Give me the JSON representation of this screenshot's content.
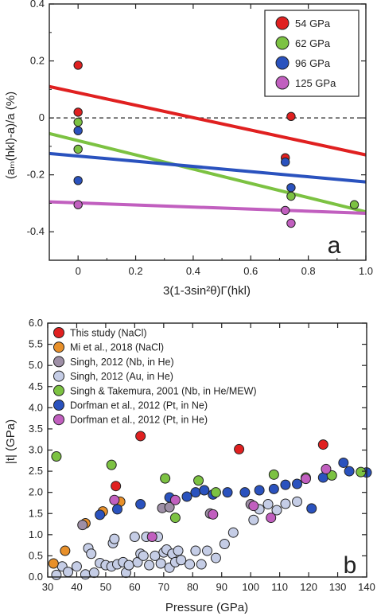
{
  "chart_data": [
    {
      "type": "scatter",
      "panel_label": "a",
      "xlabel": "3(1-3sin²θ)Γ(hkl)",
      "ylabel": "(aₘ(hkl)-a)/a (%)",
      "xlim": [
        -0.1,
        1.0
      ],
      "ylim": [
        -0.5,
        0.4
      ],
      "xticks": [
        "0",
        "0.2",
        "0.4",
        "0.6",
        "0.8",
        "1.0"
      ],
      "yticks": [
        "-0.4",
        "-0.2",
        "0",
        "0.2",
        "0.4"
      ],
      "xtick_values": [
        0,
        0.2,
        0.4,
        0.6,
        0.8,
        1.0
      ],
      "ytick_values": [
        -0.4,
        -0.2,
        0,
        0.2,
        0.4
      ],
      "zero_line": "dashed",
      "legend_position": "top-right",
      "series": [
        {
          "name": "54 GPa",
          "color": "#e02020",
          "points": [
            [
              0,
              0.185
            ],
            [
              0,
              0.02
            ],
            [
              0.74,
              0.005
            ],
            [
              0.72,
              -0.14
            ]
          ],
          "fit": [
            [
              -0.1,
              0.11
            ],
            [
              1.0,
              -0.13
            ]
          ]
        },
        {
          "name": "62 GPa",
          "color": "#7cc242",
          "points": [
            [
              0,
              -0.015
            ],
            [
              0,
              -0.11
            ],
            [
              0.74,
              -0.275
            ],
            [
              0.96,
              -0.305
            ]
          ],
          "fit": [
            [
              -0.1,
              -0.055
            ],
            [
              1.0,
              -0.33
            ]
          ]
        },
        {
          "name": "96 GPa",
          "color": "#2a52be",
          "points": [
            [
              0,
              -0.045
            ],
            [
              0,
              -0.22
            ],
            [
              0.72,
              -0.155
            ],
            [
              0.74,
              -0.245
            ]
          ],
          "fit": [
            [
              -0.1,
              -0.125
            ],
            [
              1.0,
              -0.225
            ]
          ]
        },
        {
          "name": "125 GPa",
          "color": "#c15fbf",
          "points": [
            [
              0,
              -0.305
            ],
            [
              0.72,
              -0.325
            ],
            [
              0.74,
              -0.37
            ]
          ],
          "fit": [
            [
              -0.1,
              -0.295
            ],
            [
              1.0,
              -0.335
            ]
          ]
        }
      ]
    },
    {
      "type": "scatter",
      "panel_label": "b",
      "xlabel": "Pressure (GPa)",
      "ylabel": "|t| (GPa)",
      "xlim": [
        30,
        140
      ],
      "ylim": [
        0.0,
        6.0
      ],
      "xticks": [
        "30",
        "40",
        "50",
        "60",
        "70",
        "80",
        "90",
        "100",
        "110",
        "120",
        "130",
        "140"
      ],
      "yticks": [
        "0.0",
        "0.5",
        "1.0",
        "1.5",
        "2.0",
        "2.5",
        "3.0",
        "3.5",
        "4.0",
        "4.5",
        "5.0",
        "5.5",
        "6.0"
      ],
      "xtick_values": [
        30,
        40,
        50,
        60,
        70,
        80,
        90,
        100,
        110,
        120,
        130,
        140
      ],
      "ytick_values": [
        0,
        0.5,
        1,
        1.5,
        2,
        2.5,
        3,
        3.5,
        4,
        4.5,
        5,
        5.5,
        6
      ],
      "legend_position": "top-left",
      "series": [
        {
          "name": "This study (NaCl)",
          "color": "#e02020",
          "points": [
            [
              53.5,
              2.15
            ],
            [
              62,
              3.33
            ],
            [
              96,
              3.02
            ],
            [
              125,
              3.13
            ]
          ]
        },
        {
          "name": "Mi et al., 2018 (NaCl)",
          "color": "#e8902a",
          "points": [
            [
              32,
              0.32
            ],
            [
              36,
              0.62
            ],
            [
              43,
              1.27
            ],
            [
              49,
              1.55
            ],
            [
              55,
              1.78
            ]
          ]
        },
        {
          "name": "Singh, 2012 (Nb, in He)",
          "color": "#9e8fa6",
          "points": [
            [
              42,
              1.23
            ],
            [
              69.5,
              1.63
            ],
            [
              72,
              1.65
            ],
            [
              86,
              1.5
            ],
            [
              100,
              1.72
            ]
          ]
        },
        {
          "name": "Singh, 2012 (Au, in He)",
          "color": "#c5cde6",
          "points": [
            [
              33,
              0.05
            ],
            [
              35,
              0.25
            ],
            [
              37,
              0.12
            ],
            [
              40,
              0.25
            ],
            [
              43,
              0.06
            ],
            [
              44,
              0.68
            ],
            [
              45,
              0.55
            ],
            [
              46,
              0.1
            ],
            [
              48,
              0.33
            ],
            [
              50,
              0.28
            ],
            [
              52,
              0.25
            ],
            [
              52.5,
              0.8
            ],
            [
              53,
              0.9
            ],
            [
              54,
              0.3
            ],
            [
              56,
              0.35
            ],
            [
              57,
              0.1
            ],
            [
              58,
              0.28
            ],
            [
              60,
              0.95
            ],
            [
              61,
              0.35
            ],
            [
              62,
              0.55
            ],
            [
              63,
              0.5
            ],
            [
              64,
              0.95
            ],
            [
              65,
              0.28
            ],
            [
              67,
              0.5
            ],
            [
              68,
              0.95
            ],
            [
              69,
              0.32
            ],
            [
              70,
              0.58
            ],
            [
              71,
              0.65
            ],
            [
              72,
              0.22
            ],
            [
              73,
              0.55
            ],
            [
              74,
              0.35
            ],
            [
              75,
              0.62
            ],
            [
              76,
              0.4
            ],
            [
              79,
              0.3
            ],
            [
              81,
              0.62
            ],
            [
              83,
              0.3
            ],
            [
              85,
              0.62
            ],
            [
              88,
              0.45
            ],
            [
              91,
              0.78
            ],
            [
              94,
              1.05
            ],
            [
              101,
              1.35
            ],
            [
              103,
              1.6
            ],
            [
              106,
              1.72
            ],
            [
              109,
              1.58
            ],
            [
              112,
              1.73
            ],
            [
              116,
              1.78
            ]
          ]
        },
        {
          "name": "Singh & Takemura, 2001 (Nb, in He/MEW)",
          "color": "#7cc242",
          "points": [
            [
              33,
              2.85
            ],
            [
              52,
              2.65
            ],
            [
              70.5,
              2.33
            ],
            [
              74,
              1.4
            ],
            [
              82,
              2.28
            ],
            [
              88,
              2.0
            ],
            [
              108,
              2.42
            ],
            [
              119,
              2.35
            ],
            [
              128,
              2.4
            ],
            [
              138,
              2.48
            ]
          ]
        },
        {
          "name": "Dorfman et al., 2012 (Pt, in Ne)",
          "color": "#2a52be",
          "points": [
            [
              48,
              1.47
            ],
            [
              54,
              1.6
            ],
            [
              62,
              1.72
            ],
            [
              72,
              1.88
            ],
            [
              78,
              1.9
            ],
            [
              81,
              2.0
            ],
            [
              84,
              2.05
            ],
            [
              87,
              1.95
            ],
            [
              92,
              2.0
            ],
            [
              98,
              2.0
            ],
            [
              103,
              2.05
            ],
            [
              108,
              2.08
            ],
            [
              112,
              2.18
            ],
            [
              116,
              2.2
            ],
            [
              121,
              1.62
            ],
            [
              125,
              2.35
            ],
            [
              132,
              2.7
            ],
            [
              134,
              2.5
            ],
            [
              140,
              2.47
            ]
          ]
        },
        {
          "name": "Dorfman et al., 2012 (Pt, in He)",
          "color": "#c15fbf",
          "points": [
            [
              53,
              1.82
            ],
            [
              66,
              0.95
            ],
            [
              74,
              1.82
            ],
            [
              87,
              1.48
            ],
            [
              101,
              1.68
            ],
            [
              107,
              1.4
            ],
            [
              119,
              2.32
            ],
            [
              126,
              2.55
            ]
          ]
        }
      ]
    }
  ]
}
